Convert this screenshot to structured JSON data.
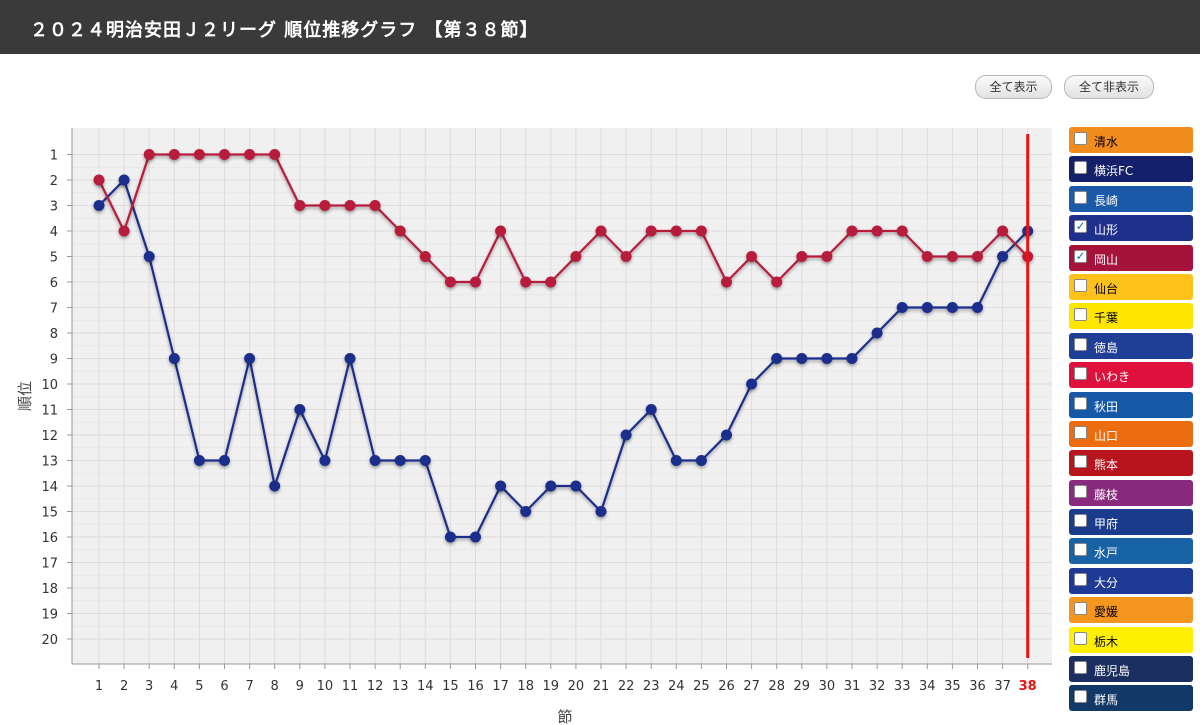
{
  "header": {
    "title": "２０２４明治安田Ｊ２リーグ 順位推移グラフ 【第３８節】"
  },
  "controls": {
    "show_all": "全て表示",
    "hide_all": "全て非表示"
  },
  "chart_data": {
    "type": "line",
    "xlabel": "節",
    "ylabel": "順位",
    "x": [
      1,
      2,
      3,
      4,
      5,
      6,
      7,
      8,
      9,
      10,
      11,
      12,
      13,
      14,
      15,
      16,
      17,
      18,
      19,
      20,
      21,
      22,
      23,
      24,
      25,
      26,
      27,
      28,
      29,
      30,
      31,
      32,
      33,
      34,
      35,
      36,
      37,
      38
    ],
    "ylim": [
      20,
      1
    ],
    "yticks": [
      1,
      2,
      3,
      4,
      5,
      6,
      7,
      8,
      9,
      10,
      11,
      12,
      13,
      14,
      15,
      16,
      17,
      18,
      19,
      20
    ],
    "current_round": 38,
    "current_round_color": "#ee1111",
    "grid": true,
    "series": [
      {
        "name": "山形",
        "color": "#1e2f8c",
        "values": [
          3,
          2,
          5,
          9,
          13,
          13,
          9,
          14,
          11,
          13,
          9,
          13,
          13,
          13,
          16,
          16,
          14,
          15,
          14,
          14,
          15,
          12,
          11,
          13,
          13,
          12,
          10,
          9,
          9,
          9,
          9,
          8,
          7,
          7,
          7,
          7,
          5,
          4
        ]
      },
      {
        "name": "岡山",
        "color": "#b81e3e",
        "values": [
          2,
          4,
          1,
          1,
          1,
          1,
          1,
          1,
          3,
          3,
          3,
          3,
          4,
          5,
          6,
          6,
          4,
          6,
          6,
          5,
          4,
          5,
          4,
          4,
          4,
          6,
          5,
          6,
          5,
          5,
          4,
          4,
          4,
          5,
          5,
          5,
          4,
          5
        ]
      }
    ]
  },
  "legend": [
    {
      "label": "清水",
      "color": "#f28c1c",
      "checked": false
    },
    {
      "label": "横浜FC",
      "color": "#14206b",
      "checked": false
    },
    {
      "label": "長崎",
      "color": "#1a5aa8",
      "checked": false
    },
    {
      "label": "山形",
      "color": "#1e2f8c",
      "checked": true
    },
    {
      "label": "岡山",
      "color": "#a5123a",
      "checked": true
    },
    {
      "label": "仙台",
      "color": "#ffc21a",
      "checked": false
    },
    {
      "label": "千葉",
      "color": "#ffe600",
      "checked": false
    },
    {
      "label": "徳島",
      "color": "#1f3e96",
      "checked": false
    },
    {
      "label": "いわき",
      "color": "#e0103c",
      "checked": false
    },
    {
      "label": "秋田",
      "color": "#1558a8",
      "checked": false
    },
    {
      "label": "山口",
      "color": "#ec6c10",
      "checked": false
    },
    {
      "label": "熊本",
      "color": "#b8141e",
      "checked": false
    },
    {
      "label": "藤枝",
      "color": "#8a2a7e",
      "checked": false
    },
    {
      "label": "甲府",
      "color": "#1a3a8c",
      "checked": false
    },
    {
      "label": "水戸",
      "color": "#1862a6",
      "checked": false
    },
    {
      "label": "大分",
      "color": "#1f3a94",
      "checked": false
    },
    {
      "label": "愛媛",
      "color": "#f5961e",
      "checked": false
    },
    {
      "label": "栃木",
      "color": "#fff000",
      "checked": false
    },
    {
      "label": "鹿児島",
      "color": "#1a2e60",
      "checked": false
    },
    {
      "label": "群馬",
      "color": "#123868",
      "checked": false
    }
  ]
}
